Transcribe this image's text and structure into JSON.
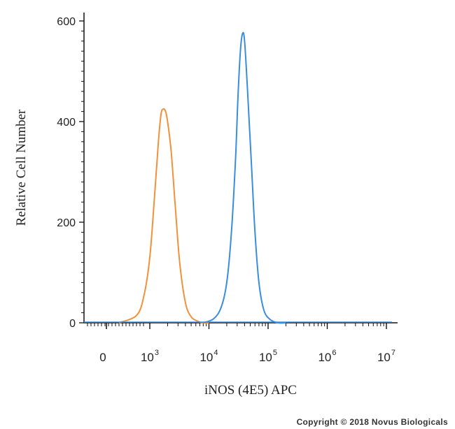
{
  "chart_data": {
    "type": "line",
    "xlabel": "iNOS (4E5) APC",
    "ylabel": "Relative Cell Number",
    "x_scale": "log",
    "x_ticks": [
      {
        "base": "0",
        "exp": ""
      },
      {
        "base": "10",
        "exp": "3"
      },
      {
        "base": "10",
        "exp": "4"
      },
      {
        "base": "10",
        "exp": "5"
      },
      {
        "base": "10",
        "exp": "6"
      },
      {
        "base": "10",
        "exp": "7"
      }
    ],
    "y_ticks": [
      "0",
      "200",
      "400",
      "600"
    ],
    "ylim": [
      0,
      600
    ],
    "grid": false,
    "colors": {
      "orange": "#F2913A",
      "blue": "#3A8DDE"
    },
    "series": [
      {
        "color": "#F2913A",
        "x": [
          300,
          600,
          800,
          1000,
          1200,
          1400,
          1550,
          1700,
          1850,
          2000,
          2300,
          2700,
          3200,
          4000,
          5000,
          6500,
          8000,
          10000
        ],
        "y": [
          0,
          15,
          55,
          130,
          250,
          360,
          415,
          425,
          420,
          400,
          340,
          230,
          120,
          40,
          12,
          3,
          0,
          0
        ]
      },
      {
        "color": "#3A8DDE",
        "x": [
          8000,
          12000,
          16000,
          20000,
          24000,
          28000,
          31000,
          34000,
          37000,
          40000,
          45000,
          52000,
          60000,
          70000,
          85000,
          110000,
          150000,
          200000
        ],
        "y": [
          0,
          8,
          30,
          80,
          180,
          320,
          450,
          540,
          575,
          560,
          460,
          320,
          180,
          80,
          25,
          6,
          0,
          0
        ]
      }
    ]
  },
  "copyright": "Copyright © 2018 Novus Biologicals"
}
